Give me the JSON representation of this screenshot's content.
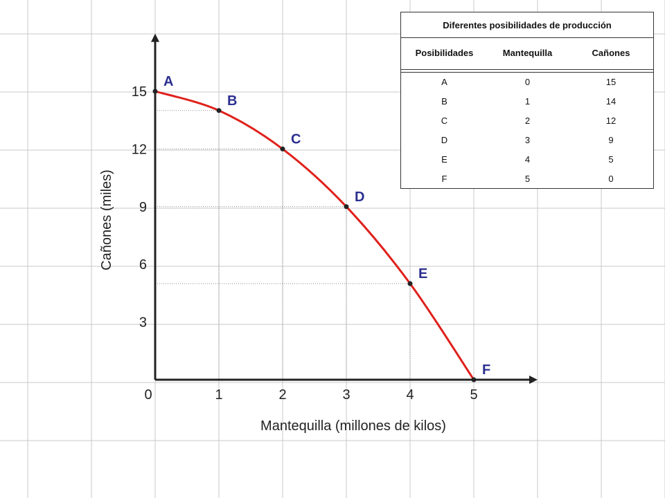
{
  "chart_data": {
    "type": "line",
    "xlabel": "Mantequilla (millones de kilos)",
    "ylabel": "Cañones (miles)",
    "x_ticks": [
      "1",
      "2",
      "3",
      "4",
      "5"
    ],
    "origin_label": "0",
    "y_ticks": [
      "3",
      "6",
      "9",
      "12",
      "15"
    ],
    "xlim": [
      0,
      6
    ],
    "ylim": [
      0,
      18
    ],
    "grid": true,
    "series": [
      {
        "points": [
          {
            "label": "A",
            "x": 0,
            "y": 15
          },
          {
            "label": "B",
            "x": 1,
            "y": 14
          },
          {
            "label": "C",
            "x": 2,
            "y": 12
          },
          {
            "label": "D",
            "x": 3,
            "y": 9
          },
          {
            "label": "E",
            "x": 4,
            "y": 5
          },
          {
            "label": "F",
            "x": 5,
            "y": 0
          }
        ]
      }
    ],
    "colors": {
      "curve": "#e0201b",
      "points": "#222222",
      "labels": "#2b2f8f",
      "grid": "#c8c8c8"
    }
  },
  "table": {
    "title": "Diferentes posibilidades de producción",
    "headers": [
      "Posibilidades",
      "Mantequilla",
      "Cañones"
    ],
    "rows": [
      [
        "A",
        "0",
        "15"
      ],
      [
        "B",
        "1",
        "14"
      ],
      [
        "C",
        "2",
        "12"
      ],
      [
        "D",
        "3",
        "9"
      ],
      [
        "E",
        "4",
        "5"
      ],
      [
        "F",
        "5",
        "0"
      ]
    ]
  }
}
